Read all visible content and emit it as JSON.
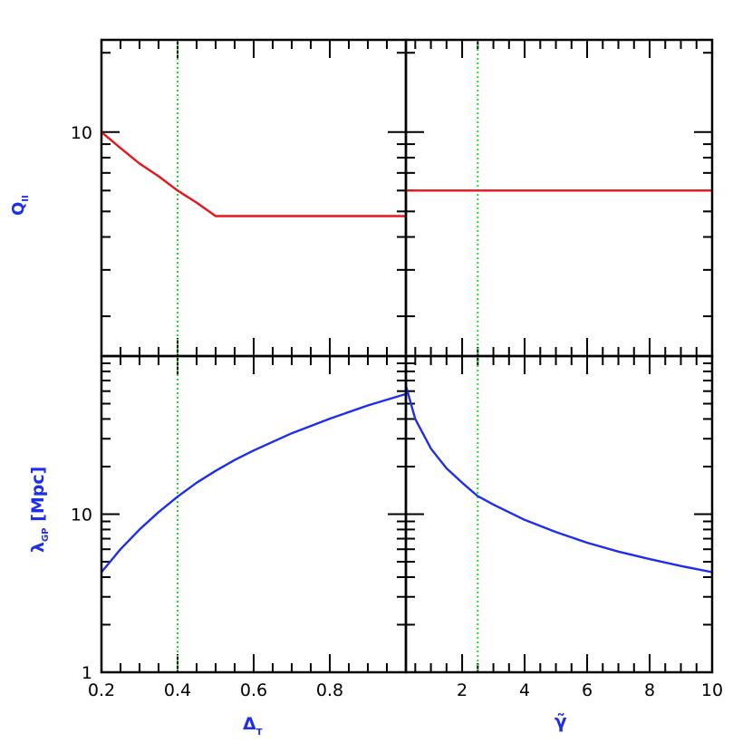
{
  "colors": {
    "frame": "#000000",
    "red_curve": "#e8141c",
    "blue_curve": "#1f2fe8",
    "green_marker": "#1edc1e",
    "label": "#1f2fe8"
  },
  "chart_data": [
    {
      "type": "line",
      "panel": "top-left",
      "xlim": [
        0.2,
        1.0
      ],
      "ylim_log10": [
        0.15,
        1.35
      ],
      "yscale": "log",
      "x_ticks": [
        0.2,
        0.4,
        0.6,
        0.8
      ],
      "y_ticks": [
        10
      ],
      "y_tick_labels": [
        "10"
      ],
      "ylabel": {
        "main": "Q",
        "sub": "II"
      },
      "marker_x": 0.4,
      "series": [
        {
          "color": "#e8141c",
          "x": [
            0.2,
            0.25,
            0.3,
            0.35,
            0.4,
            0.45,
            0.5,
            0.6,
            0.7,
            0.8,
            0.9,
            1.0
          ],
          "y": [
            10.0,
            8.7,
            7.6,
            6.8,
            6.0,
            5.4,
            4.8,
            4.8,
            4.8,
            4.8,
            4.8,
            4.8
          ]
        }
      ]
    },
    {
      "type": "line",
      "panel": "top-right",
      "xlim": [
        0.2,
        10
      ],
      "ylim_log10": [
        0.15,
        1.35
      ],
      "yscale": "log",
      "x_ticks": [
        2,
        4,
        6,
        8,
        10
      ],
      "y_ticks": [
        10
      ],
      "marker_x": 2.5,
      "series": [
        {
          "color": "#e8141c",
          "x": [
            0.2,
            2,
            4,
            6,
            8,
            10
          ],
          "y": [
            6.0,
            6.0,
            6.0,
            6.0,
            6.0,
            6.0
          ]
        }
      ]
    },
    {
      "type": "line",
      "panel": "bottom-left",
      "xlim": [
        0.2,
        1.0
      ],
      "ylim": [
        1,
        100
      ],
      "yscale": "log",
      "x_ticks": [
        0.2,
        0.4,
        0.6,
        0.8
      ],
      "x_tick_labels": [
        "0.2",
        "0.4",
        "0.6",
        "0.8"
      ],
      "y_ticks": [
        1,
        10
      ],
      "y_tick_labels": [
        "1",
        "10"
      ],
      "xlabel": {
        "main": "Δ",
        "sub": "T"
      },
      "ylabel": {
        "main": "λ",
        "sub": "GP",
        "tail": " [Mpc]"
      },
      "marker_x": 0.4,
      "series": [
        {
          "color": "#1f2fe8",
          "x": [
            0.2,
            0.25,
            0.3,
            0.35,
            0.4,
            0.45,
            0.5,
            0.55,
            0.6,
            0.7,
            0.8,
            0.9,
            1.0
          ],
          "y": [
            4.3,
            6.0,
            8.0,
            10.3,
            12.9,
            15.8,
            18.8,
            22.0,
            25.3,
            32.5,
            40.2,
            48.7,
            57.5
          ]
        }
      ]
    },
    {
      "type": "line",
      "panel": "bottom-right",
      "xlim": [
        0.2,
        10
      ],
      "ylim": [
        1,
        100
      ],
      "yscale": "log",
      "x_ticks": [
        2,
        4,
        6,
        8,
        10
      ],
      "x_tick_labels": [
        "2",
        "4",
        "6",
        "8",
        "10"
      ],
      "y_ticks": [
        1,
        10
      ],
      "xlabel": {
        "main": "γ̃",
        "sub": ""
      },
      "marker_x": 2.5,
      "series": [
        {
          "color": "#1f2fe8",
          "x": [
            0.2,
            0.5,
            1.0,
            1.5,
            2.0,
            2.5,
            3.0,
            4.0,
            5.0,
            6.0,
            7.0,
            8.0,
            9.0,
            10.0
          ],
          "y": [
            65.0,
            40.0,
            26.0,
            19.5,
            15.8,
            13.0,
            11.5,
            9.2,
            7.7,
            6.6,
            5.8,
            5.2,
            4.7,
            4.3
          ]
        }
      ]
    }
  ]
}
